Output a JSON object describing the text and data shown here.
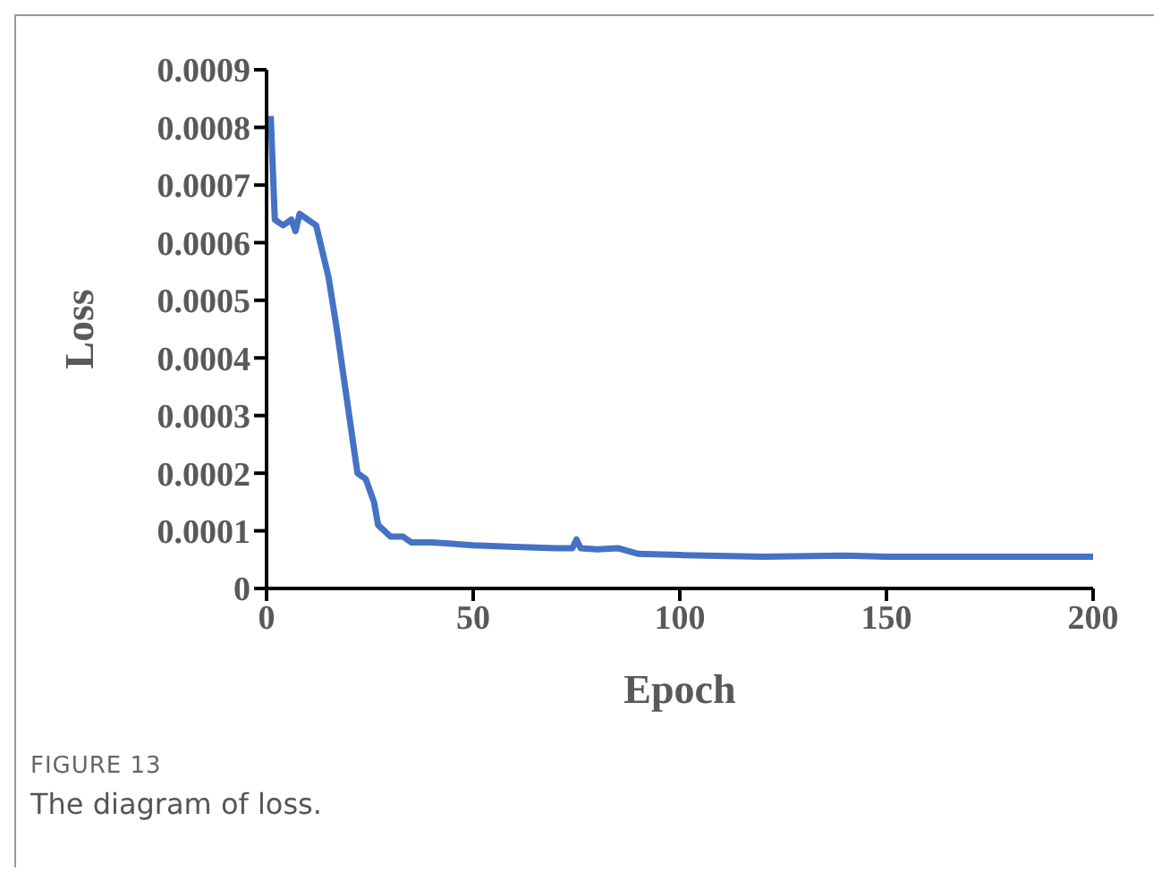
{
  "chart_data": {
    "type": "line",
    "xlabel": "Epoch",
    "ylabel": "Loss",
    "x": [
      1,
      2,
      4,
      6,
      7,
      8,
      10,
      12,
      13,
      15,
      17,
      19,
      21,
      22,
      24,
      26,
      27,
      30,
      33,
      35,
      40,
      50,
      60,
      70,
      74,
      75,
      76,
      80,
      85,
      90,
      100,
      120,
      140,
      150,
      170,
      200
    ],
    "series": [
      {
        "color": "#4472c4",
        "values": [
          0.00082,
          0.00064,
          0.00063,
          0.00064,
          0.00062,
          0.00065,
          0.00064,
          0.00063,
          0.0006,
          0.00054,
          0.00045,
          0.00035,
          0.00025,
          0.0002,
          0.00019,
          0.00015,
          0.00011,
          9e-05,
          9e-05,
          8e-05,
          8e-05,
          7.5e-05,
          7.2e-05,
          7e-05,
          7e-05,
          8.5e-05,
          7e-05,
          6.8e-05,
          7e-05,
          6e-05,
          5.8e-05,
          5.5e-05,
          5.7e-05,
          5.5e-05,
          5.5e-05,
          5.5e-05
        ]
      }
    ],
    "xlim": [
      0,
      200
    ],
    "xticks": [
      0,
      50,
      100,
      150,
      200
    ],
    "ylim": [
      0,
      0.0009
    ],
    "yticks": [
      0,
      0.0001,
      0.0002,
      0.0003,
      0.0004,
      0.0005,
      0.0006,
      0.0007,
      0.0008,
      0.0009
    ],
    "grid": false,
    "legend": false,
    "marker": "none",
    "line_style": "solid",
    "annotations": [
      "FIGURE 13",
      "The diagram of loss."
    ]
  }
}
